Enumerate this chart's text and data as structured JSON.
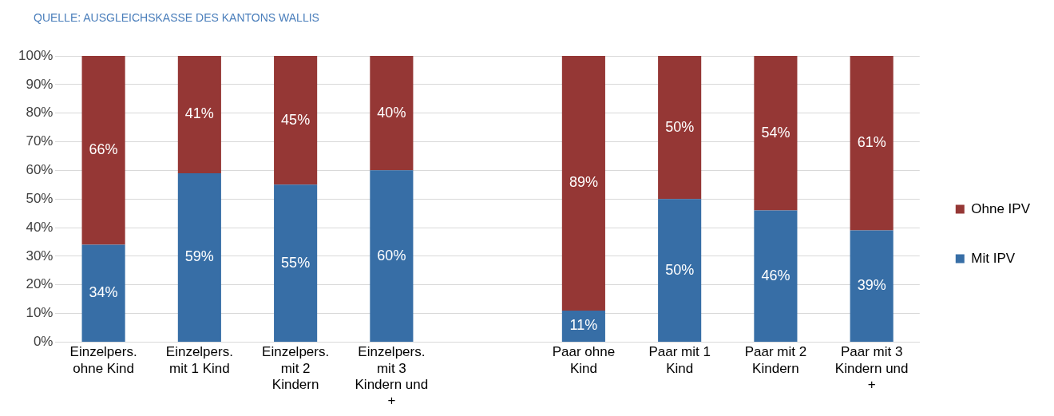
{
  "chart_data": {
    "type": "bar",
    "stacked": true,
    "annotations": [
      "QUELLE: AUSGLEICHSKASSE DES KANTONS WALLIS"
    ],
    "categories": [
      "Einzelpers. ohne Kind",
      "Einzelpers. mit 1 Kind",
      "Einzelpers. mit 2 Kindern",
      "Einzelpers. mit 3 Kindern und +",
      null,
      "Paar ohne Kind",
      "Paar mit 1 Kind",
      "Paar mit 2 Kindern",
      "Paar mit 3 Kindern und +"
    ],
    "series": [
      {
        "name": "Mit IPV",
        "color": "#376ea6",
        "values": [
          34,
          59,
          55,
          60,
          null,
          11,
          50,
          46,
          39
        ],
        "value_labels": [
          "34%",
          "59%",
          "55%",
          "60%",
          null,
          "11%",
          "50%",
          "46%",
          "39%"
        ]
      },
      {
        "name": "Ohne IPV",
        "color": "#953735",
        "values": [
          66,
          41,
          45,
          40,
          null,
          89,
          50,
          54,
          61
        ],
        "value_labels": [
          "66%",
          "41%",
          "45%",
          "40%",
          null,
          "89%",
          "50%",
          "54%",
          "61%"
        ]
      }
    ],
    "ylim": [
      0,
      100
    ],
    "yticks": [
      {
        "value": 0,
        "label": "0%"
      },
      {
        "value": 10,
        "label": "10%"
      },
      {
        "value": 20,
        "label": "20%"
      },
      {
        "value": 30,
        "label": "30%"
      },
      {
        "value": 40,
        "label": "40%"
      },
      {
        "value": 50,
        "label": "50%"
      },
      {
        "value": 60,
        "label": "60%"
      },
      {
        "value": 70,
        "label": "70%"
      },
      {
        "value": 80,
        "label": "80%"
      },
      {
        "value": 90,
        "label": "90%"
      },
      {
        "value": 100,
        "label": "100%"
      }
    ],
    "grid": "y",
    "legend": "right"
  }
}
